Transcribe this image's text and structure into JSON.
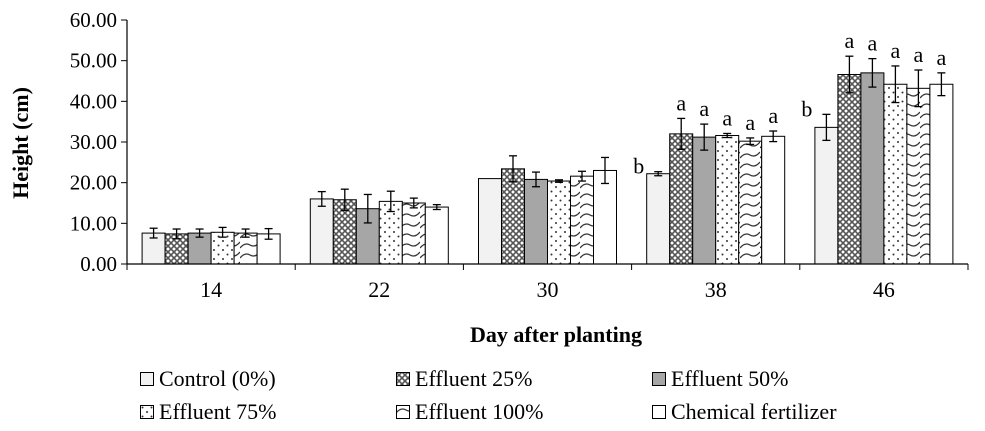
{
  "chart_data": {
    "type": "bar",
    "title": "",
    "xlabel": "Day after planting",
    "ylabel": "Height (cm)",
    "ylim": [
      0,
      60
    ],
    "y_ticks": [
      "0.00",
      "10.00",
      "20.00",
      "30.00",
      "40.00",
      "50.00",
      "60.00"
    ],
    "grid": false,
    "legend_position": "bottom",
    "categories": [
      "14",
      "22",
      "30",
      "38",
      "46"
    ],
    "series": [
      {
        "name": "Control (0%)",
        "pattern": "solid-light",
        "color": "#f2f2f2",
        "values": [
          7.6,
          16.0,
          21.0,
          22.2,
          33.6
        ],
        "errors": [
          1.2,
          1.8,
          0,
          0.5,
          3.2
        ],
        "annotations": [
          "",
          "",
          "",
          "b",
          "b"
        ]
      },
      {
        "name": "Effluent 25%",
        "pattern": "crosshatch",
        "color": "#909090",
        "values": [
          7.4,
          15.8,
          23.4,
          32.0,
          46.6
        ],
        "errors": [
          1.2,
          2.6,
          3.2,
          3.8,
          4.5
        ],
        "annotations": [
          "",
          "",
          "",
          "a",
          "a"
        ]
      },
      {
        "name": "Effluent 50%",
        "pattern": "solid-gray",
        "color": "#a6a6a6",
        "values": [
          7.6,
          13.6,
          20.8,
          31.2,
          47.0
        ],
        "errors": [
          1.0,
          3.5,
          1.8,
          3.2,
          3.5
        ],
        "annotations": [
          "",
          "",
          "",
          "a",
          "a"
        ]
      },
      {
        "name": "Effluent 75%",
        "pattern": "dots",
        "color": "#ffffff",
        "values": [
          7.8,
          15.4,
          20.4,
          31.6,
          44.2
        ],
        "errors": [
          1.2,
          2.5,
          0.3,
          0.5,
          4.5
        ],
        "annotations": [
          "",
          "",
          "",
          "a",
          "a"
        ]
      },
      {
        "name": "Effluent 100%",
        "pattern": "waves",
        "color": "#ffffff",
        "values": [
          7.6,
          15.0,
          21.6,
          30.2,
          43.2
        ],
        "errors": [
          1.0,
          1.2,
          1.2,
          0.8,
          4.5
        ],
        "annotations": [
          "",
          "",
          "",
          "a",
          "a"
        ]
      },
      {
        "name": "Chemical fertilizer",
        "pattern": "solid-white",
        "color": "#ffffff",
        "values": [
          7.4,
          14.0,
          23.0,
          31.4,
          44.2
        ],
        "errors": [
          1.3,
          0.6,
          3.2,
          1.3,
          2.8
        ],
        "annotations": [
          "",
          "",
          "",
          "a",
          "a"
        ]
      }
    ]
  }
}
